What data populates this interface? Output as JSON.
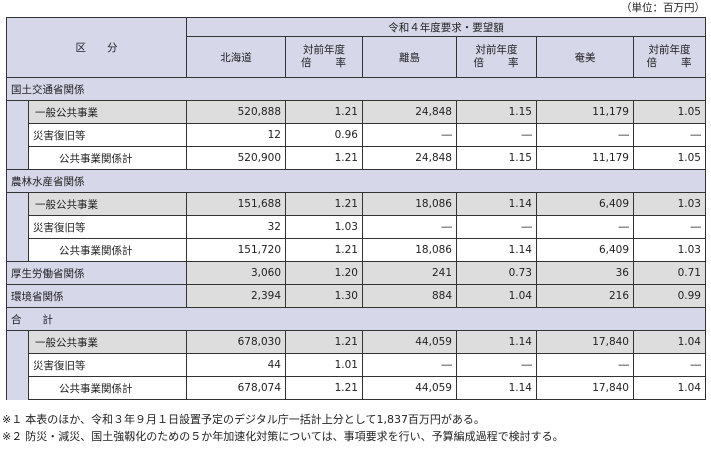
{
  "unit_label": "（単位：百万円）",
  "header": {
    "category": "区　　分",
    "request_group": "令和４年度要求・要望額",
    "regions": [
      "北海道",
      "離島",
      "奄美"
    ],
    "ratio_line1": "対前年度",
    "ratio_line2": "倍　　率"
  },
  "rows": [
    {
      "type": "section",
      "label": "国土交通省関係"
    },
    {
      "type": "item",
      "label": "一般公共事業",
      "hokkaido": "520,888",
      "hokkaido_ratio": "1.21",
      "ritou": "24,848",
      "ritou_ratio": "1.15",
      "amami": "11,179",
      "amami_ratio": "1.05"
    },
    {
      "type": "item",
      "label": "災害復旧等",
      "hokkaido": "12",
      "hokkaido_ratio": "0.96",
      "ritou": "―",
      "ritou_ratio": "―",
      "amami": "―",
      "amami_ratio": "―"
    },
    {
      "type": "subtotal",
      "label": "公共事業関係計",
      "hokkaido": "520,900",
      "hokkaido_ratio": "1.21",
      "ritou": "24,848",
      "ritou_ratio": "1.15",
      "amami": "11,179",
      "amami_ratio": "1.05"
    },
    {
      "type": "section",
      "label": "農林水産省関係"
    },
    {
      "type": "item",
      "label": "一般公共事業",
      "hokkaido": "151,688",
      "hokkaido_ratio": "1.21",
      "ritou": "18,086",
      "ritou_ratio": "1.14",
      "amami": "6,409",
      "amami_ratio": "1.03"
    },
    {
      "type": "item",
      "label": "災害復旧等",
      "hokkaido": "32",
      "hokkaido_ratio": "1.03",
      "ritou": "―",
      "ritou_ratio": "―",
      "amami": "―",
      "amami_ratio": "―"
    },
    {
      "type": "subtotal",
      "label": "公共事業関係計",
      "hokkaido": "151,720",
      "hokkaido_ratio": "1.21",
      "ritou": "18,086",
      "ritou_ratio": "1.14",
      "amami": "6,409",
      "amami_ratio": "1.03"
    },
    {
      "type": "single",
      "label": "厚生労働省関係",
      "hokkaido": "3,060",
      "hokkaido_ratio": "1.20",
      "ritou": "241",
      "ritou_ratio": "0.73",
      "amami": "36",
      "amami_ratio": "0.71"
    },
    {
      "type": "single",
      "label": "環境省関係",
      "hokkaido": "2,394",
      "hokkaido_ratio": "1.30",
      "ritou": "884",
      "ritou_ratio": "1.04",
      "amami": "216",
      "amami_ratio": "0.99"
    },
    {
      "type": "section",
      "label": "合　　計"
    },
    {
      "type": "item",
      "label": "一般公共事業",
      "hokkaido": "678,030",
      "hokkaido_ratio": "1.21",
      "ritou": "44,059",
      "ritou_ratio": "1.14",
      "amami": "17,840",
      "amami_ratio": "1.04"
    },
    {
      "type": "item",
      "label": "災害復旧等",
      "hokkaido": "44",
      "hokkaido_ratio": "1.01",
      "ritou": "―",
      "ritou_ratio": "―",
      "amami": "―",
      "amami_ratio": "―"
    },
    {
      "type": "subtotal",
      "label": "公共事業関係計",
      "hokkaido": "678,074",
      "hokkaido_ratio": "1.21",
      "ritou": "44,059",
      "ritou_ratio": "1.14",
      "amami": "17,840",
      "amami_ratio": "1.04"
    }
  ],
  "notes": [
    {
      "marker": "※１",
      "text": "本表のほか、令和３年９月１日設置予定のデジタル庁一括計上分として1,837百万円がある。"
    },
    {
      "marker": "※２",
      "text": "防災・減災、国土強靱化のための５か年加速化対策については、事項要求を行い、予算編成過程で検討する。"
    }
  ]
}
